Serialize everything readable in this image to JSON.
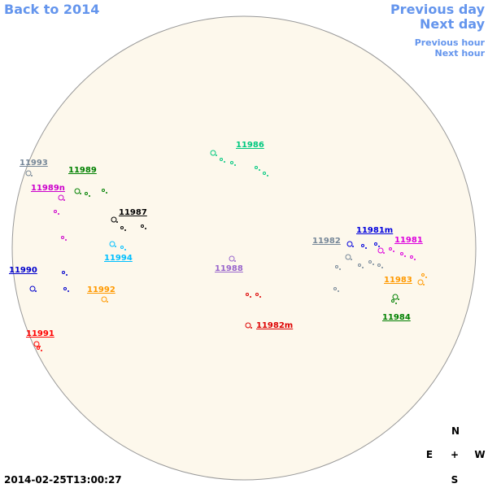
{
  "navigation": {
    "back": "Back to 2014",
    "previous_day": "Previous day",
    "next_day": "Next day",
    "previous_hour": "Previous hour",
    "next_hour": "Next hour"
  },
  "regions": [
    {
      "label": "11993",
      "color": "#778899"
    },
    {
      "label": "11989",
      "color": "#008000"
    },
    {
      "label": "11989n",
      "color": "#cc00cc"
    },
    {
      "label": "11987",
      "color": "#000000"
    },
    {
      "label": "11986",
      "color": "#00c87f"
    },
    {
      "label": "11994",
      "color": "#00bfff"
    },
    {
      "label": "11990",
      "color": "#0000cc"
    },
    {
      "label": "11992",
      "color": "#ff9900"
    },
    {
      "label": "11988",
      "color": "#9966cc"
    },
    {
      "label": "11991",
      "color": "#ff0000"
    },
    {
      "label": "11982m",
      "color": "#dd0000"
    },
    {
      "label": "11982",
      "color": "#778899"
    },
    {
      "label": "11981m",
      "color": "#0000dd"
    },
    {
      "label": "11981",
      "color": "#dd00dd"
    },
    {
      "label": "11983",
      "color": "#ff9900"
    },
    {
      "label": "11984",
      "color": "#008000"
    }
  ],
  "compass": {
    "north": "N",
    "east": "E",
    "center": "+",
    "west": "W",
    "south": "S"
  },
  "timestamp": "2014-02-25T13:00:27"
}
